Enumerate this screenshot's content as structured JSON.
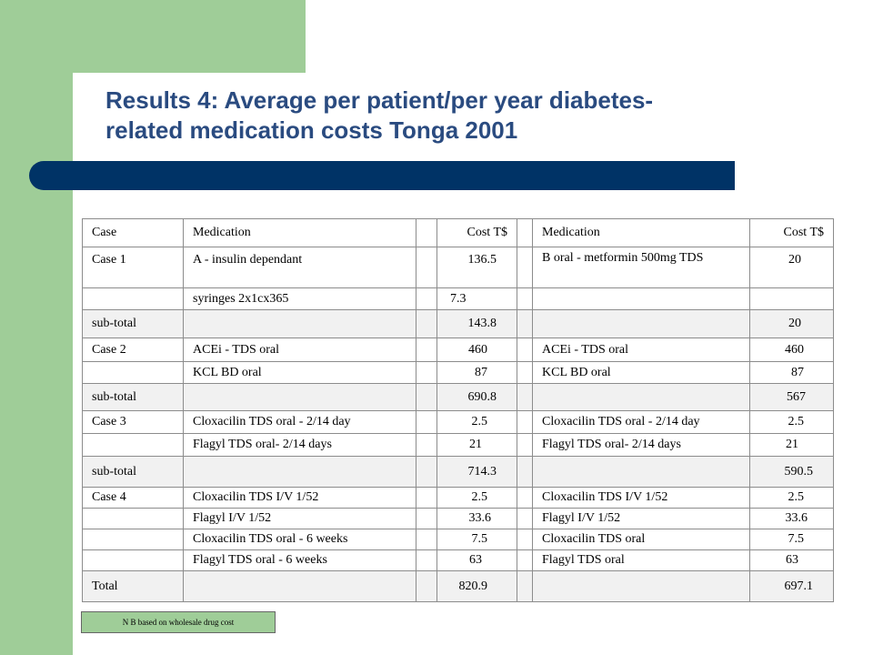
{
  "title_line1": "Results 4: Average per patient/per year diabetes-",
  "title_line2": "related medication costs  Tonga 2001",
  "table": {
    "headers": [
      "Case",
      "Medication",
      "Cost T$",
      "Medication",
      "Cost T$"
    ],
    "rows": [
      [
        "Case 1",
        "A - insulin dependant",
        "136.5",
        "B oral - metformin 500mg TDS",
        "20"
      ],
      [
        "",
        "syringes 2x1cx365",
        "7.3",
        "",
        ""
      ],
      [
        "sub-total",
        "",
        "143.8",
        "",
        "20"
      ],
      [
        "Case 2",
        "ACEi - TDS oral",
        "460",
        "ACEi - TDS oral",
        "460"
      ],
      [
        "",
        "KCL BD oral",
        "87",
        "KCL BD oral",
        "87"
      ],
      [
        "sub-total",
        "",
        "690.8",
        "",
        "567"
      ],
      [
        "Case 3",
        "Cloxacilin TDS oral - 2/14 day",
        "2.5",
        "Cloxacilin TDS oral - 2/14 day",
        "2.5"
      ],
      [
        "",
        "Flagyl TDS oral- 2/14 days",
        "21",
        "Flagyl TDS oral- 2/14 days",
        "21"
      ],
      [
        "sub-total",
        "",
        "714.3",
        "",
        "590.5"
      ],
      [
        "Case 4",
        "Cloxacilin TDS I/V 1/52",
        "2.5",
        "Cloxacilin TDS I/V 1/52",
        "2.5"
      ],
      [
        "",
        "Flagyl I/V 1/52",
        "33.6",
        "Flagyl I/V 1/52",
        "33.6"
      ],
      [
        "",
        "Cloxacilin TDS oral - 6 weeks",
        "7.5",
        "Cloxacilin TDS oral",
        "7.5"
      ],
      [
        "",
        "Flagyl TDS oral - 6 weeks",
        "63",
        "Flagyl TDS oral",
        "63"
      ],
      [
        "Total",
        "",
        "820.9",
        "",
        "697.1"
      ]
    ]
  },
  "note": "N B based on wholesale drug cost",
  "colors": {
    "green": "#9fcd98",
    "navy_bar": "#003366",
    "title": "#2a4b80"
  }
}
